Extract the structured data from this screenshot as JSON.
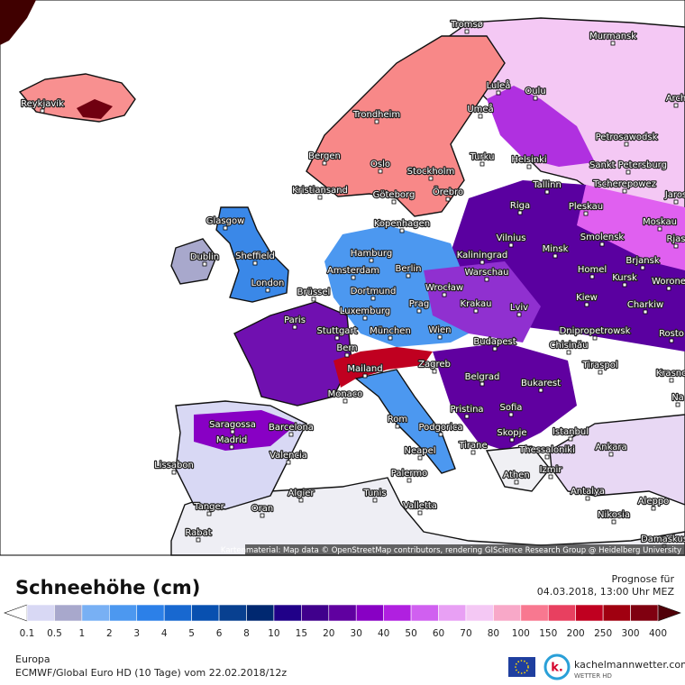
{
  "map": {
    "cities": [
      "Tromsø",
      "Murmansk",
      "Reykjavík",
      "Luleå",
      "Oulu",
      "Arch",
      "Umeå",
      "Trondheim",
      "Petrosawodsk",
      "Bergen",
      "Oslo",
      "Turku",
      "Helsinki",
      "Sankt Petersburg",
      "Stockholm",
      "Kristiansand",
      "Göteborg",
      "Örebro",
      "Tallinn",
      "Tscherepowez",
      "Jaros",
      "Pleskau",
      "Riga",
      "Glasgow",
      "Kopenhagen",
      "Moskau",
      "Smolensk",
      "Rjas",
      "Vilnius",
      "Minsk",
      "Dublin",
      "Sheffield",
      "Hamburg",
      "Kaliningrad",
      "Brjansk",
      "Berlin",
      "Amsterdam",
      "Warschau",
      "Homel",
      "Kursk",
      "Worone",
      "London",
      "Brüssel",
      "Dortmund",
      "Wrocław",
      "Kiew",
      "Charkiw",
      "Prag",
      "Krakau",
      "Luxemburg",
      "Lviv",
      "Paris",
      "Stuttgart",
      "München",
      "Wien",
      "Dnipropetrowsk",
      "Rosto",
      "Budapest",
      "Chisinău",
      "Bern",
      "Zagreb",
      "Tiraspol",
      "Krasno",
      "Mailand",
      "Belgrad",
      "Monaco",
      "Bukarest",
      "Na",
      "Pristina",
      "Sofia",
      "Rom",
      "Podgorica",
      "Saragossa",
      "Barcelona",
      "Istanbul",
      "Skopje",
      "Madrid",
      "Neapel",
      "Tirane",
      "Ankara",
      "Thessaloniki",
      "Valencia",
      "Lissabon",
      "Izmir",
      "Palermo",
      "Athen",
      "Algier",
      "Tunis",
      "Antalya",
      "Aleppo",
      "Tanger",
      "Oran",
      "Valletta",
      "Nikosia",
      "Rabat",
      "Damaskus"
    ],
    "attribution": "Kartenmaterial: Map data © OpenStreetMap contributors, rendering GIScience Research Group @ Heidelberg University"
  },
  "legend": {
    "title": "Schneehöhe (cm)",
    "ticks": [
      0.1,
      0.5,
      1,
      2,
      3,
      4,
      5,
      6,
      8,
      10,
      15,
      20,
      30,
      40,
      50,
      60,
      70,
      80,
      100,
      150,
      200,
      250,
      300,
      400
    ],
    "colors": [
      "#d8d8f4",
      "#a8a8cc",
      "#78b0f4",
      "#4c98f0",
      "#2c80e8",
      "#1868d0",
      "#0850b0",
      "#084090",
      "#002870",
      "#200088",
      "#40008c",
      "#6000a0",
      "#8800c4",
      "#b020e0",
      "#d060f0",
      "#e8a0f4",
      "#f4c8f4",
      "#f8a8c8",
      "#f87890",
      "#e84060",
      "#c00020",
      "#a00010",
      "#800010"
    ],
    "under_color": "#ffffff",
    "over_color": "#500008"
  },
  "forecast": {
    "label": "Prognose für",
    "valid": "04.03.2018, 13:00 Uhr MEZ"
  },
  "footer": {
    "region": "Europa",
    "model": "ECMWF/Global Euro HD (10 Tage) vom 22.02.2018/12z"
  },
  "logo": {
    "mark": "k.",
    "name": "kachelmannwetter.com",
    "tagline": "WETTER HD"
  }
}
